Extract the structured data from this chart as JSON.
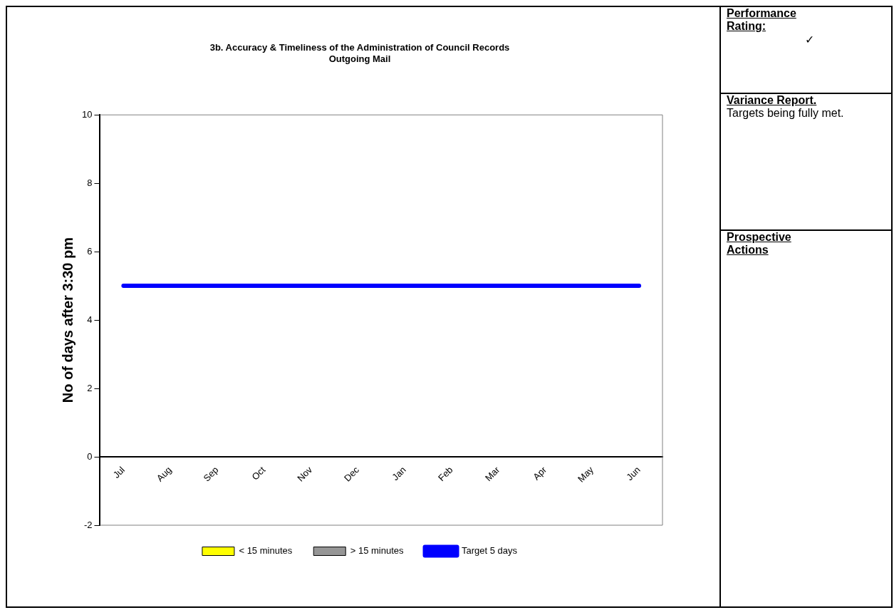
{
  "chart_data": {
    "type": "line",
    "title": "3b. Accuracy & Timeliness of the Administration of Council Records\nOutgoing Mail",
    "ylabel": "No of days after 3:30 pm",
    "categories": [
      "Jul",
      "Aug",
      "Sep",
      "Oct",
      "Nov",
      "Dec",
      "Jan",
      "Feb",
      "Mar",
      "Apr",
      "May",
      "Jun"
    ],
    "series": [
      {
        "name": "< 15 minutes",
        "type": "bar",
        "color": "#ffff00",
        "values": [
          null,
          null,
          null,
          null,
          null,
          null,
          null,
          null,
          null,
          null,
          null,
          null
        ]
      },
      {
        "name": "> 15 minutes",
        "type": "bar",
        "color": "#969696",
        "values": [
          null,
          null,
          null,
          null,
          null,
          null,
          null,
          null,
          null,
          null,
          null,
          null
        ]
      },
      {
        "name": "Target 5 days",
        "color": "#0000ff",
        "values": [
          5,
          5,
          5,
          5,
          5,
          5,
          5,
          5,
          5,
          5,
          5,
          5
        ]
      }
    ],
    "ylim": [
      -2,
      10
    ],
    "yticks": [
      -2,
      0,
      2,
      4,
      6,
      8,
      10
    ],
    "grid": false,
    "legend": "bottom",
    "marker": "none",
    "line_style": "solid",
    "annotations": [
      "Performance Rating:",
      "✓",
      "Variance Report.",
      "Targets being fully met.",
      "Prospective Actions"
    ]
  }
}
